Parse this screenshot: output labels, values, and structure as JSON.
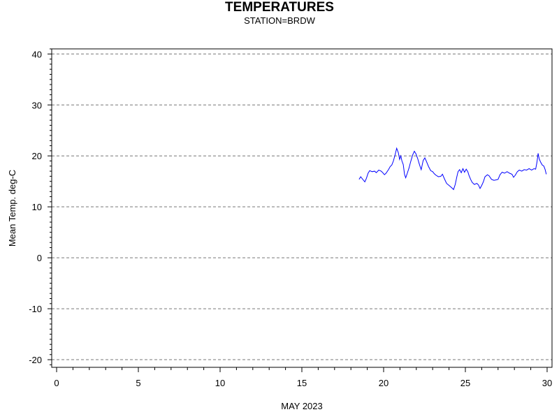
{
  "chart_data": {
    "type": "line",
    "title": "TEMPERATURES",
    "subtitle": "STATION=BRDW",
    "xlabel": "MAY 2023",
    "ylabel": "Mean Temp. deg-C",
    "xlim": [
      -0.3,
      30.3
    ],
    "ylim": [
      -21.5,
      41
    ],
    "xticks": [
      0,
      5,
      10,
      15,
      20,
      25,
      30
    ],
    "yticks": [
      -20,
      -10,
      0,
      10,
      20,
      30,
      40
    ],
    "grid": "horizontal dashed",
    "line_color": "#0000ff",
    "series": [
      {
        "values": [
          [
            18.5,
            15.4
          ],
          [
            18.6,
            15.9
          ],
          [
            18.75,
            15.3
          ],
          [
            18.85,
            14.9
          ],
          [
            18.95,
            15.6
          ],
          [
            19.05,
            16.6
          ],
          [
            19.15,
            17.1
          ],
          [
            19.3,
            16.9
          ],
          [
            19.45,
            17.0
          ],
          [
            19.55,
            16.7
          ],
          [
            19.7,
            17.2
          ],
          [
            19.85,
            17.0
          ],
          [
            19.95,
            16.7
          ],
          [
            20.05,
            16.3
          ],
          [
            20.15,
            16.6
          ],
          [
            20.3,
            17.3
          ],
          [
            20.4,
            17.9
          ],
          [
            20.5,
            18.2
          ],
          [
            20.6,
            19.0
          ],
          [
            20.7,
            20.2
          ],
          [
            20.8,
            21.5
          ],
          [
            20.9,
            20.6
          ],
          [
            20.98,
            19.3
          ],
          [
            21.05,
            20.0
          ],
          [
            21.12,
            19.0
          ],
          [
            21.2,
            18.3
          ],
          [
            21.28,
            16.4
          ],
          [
            21.35,
            15.7
          ],
          [
            21.45,
            16.6
          ],
          [
            21.55,
            17.6
          ],
          [
            21.65,
            18.8
          ],
          [
            21.78,
            20.2
          ],
          [
            21.88,
            20.9
          ],
          [
            21.98,
            20.4
          ],
          [
            22.08,
            19.5
          ],
          [
            22.2,
            18.2
          ],
          [
            22.3,
            17.3
          ],
          [
            22.42,
            19.1
          ],
          [
            22.52,
            19.6
          ],
          [
            22.62,
            18.9
          ],
          [
            22.75,
            17.9
          ],
          [
            22.88,
            17.1
          ],
          [
            23.0,
            16.9
          ],
          [
            23.1,
            16.5
          ],
          [
            23.2,
            16.2
          ],
          [
            23.35,
            15.9
          ],
          [
            23.5,
            16.0
          ],
          [
            23.6,
            16.4
          ],
          [
            23.72,
            15.5
          ],
          [
            23.85,
            14.6
          ],
          [
            24.0,
            14.2
          ],
          [
            24.15,
            13.8
          ],
          [
            24.28,
            13.4
          ],
          [
            24.38,
            14.4
          ],
          [
            24.48,
            15.9
          ],
          [
            24.55,
            16.9
          ],
          [
            24.65,
            17.3
          ],
          [
            24.75,
            16.7
          ],
          [
            24.85,
            17.5
          ],
          [
            24.95,
            16.8
          ],
          [
            25.05,
            17.4
          ],
          [
            25.15,
            16.9
          ],
          [
            25.22,
            16.2
          ],
          [
            25.32,
            15.4
          ],
          [
            25.42,
            14.8
          ],
          [
            25.55,
            14.4
          ],
          [
            25.7,
            14.6
          ],
          [
            25.8,
            14.3
          ],
          [
            25.9,
            13.6
          ],
          [
            26.0,
            14.2
          ],
          [
            26.1,
            14.9
          ],
          [
            26.2,
            15.9
          ],
          [
            26.35,
            16.3
          ],
          [
            26.45,
            16.1
          ],
          [
            26.6,
            15.4
          ],
          [
            26.75,
            15.2
          ],
          [
            26.9,
            15.3
          ],
          [
            27.0,
            15.4
          ],
          [
            27.12,
            16.3
          ],
          [
            27.25,
            16.8
          ],
          [
            27.4,
            16.6
          ],
          [
            27.55,
            16.9
          ],
          [
            27.7,
            16.6
          ],
          [
            27.85,
            16.4
          ],
          [
            27.95,
            15.8
          ],
          [
            28.05,
            16.2
          ],
          [
            28.18,
            16.9
          ],
          [
            28.3,
            17.2
          ],
          [
            28.45,
            17.0
          ],
          [
            28.6,
            17.3
          ],
          [
            28.75,
            17.2
          ],
          [
            28.9,
            17.5
          ],
          [
            29.05,
            17.2
          ],
          [
            29.2,
            17.5
          ],
          [
            29.3,
            17.4
          ],
          [
            29.38,
            18.8
          ],
          [
            29.45,
            20.5
          ],
          [
            29.52,
            19.4
          ],
          [
            29.6,
            18.8
          ],
          [
            29.7,
            18.2
          ],
          [
            29.8,
            18.0
          ],
          [
            29.88,
            17.3
          ],
          [
            29.95,
            16.4
          ]
        ]
      }
    ]
  }
}
